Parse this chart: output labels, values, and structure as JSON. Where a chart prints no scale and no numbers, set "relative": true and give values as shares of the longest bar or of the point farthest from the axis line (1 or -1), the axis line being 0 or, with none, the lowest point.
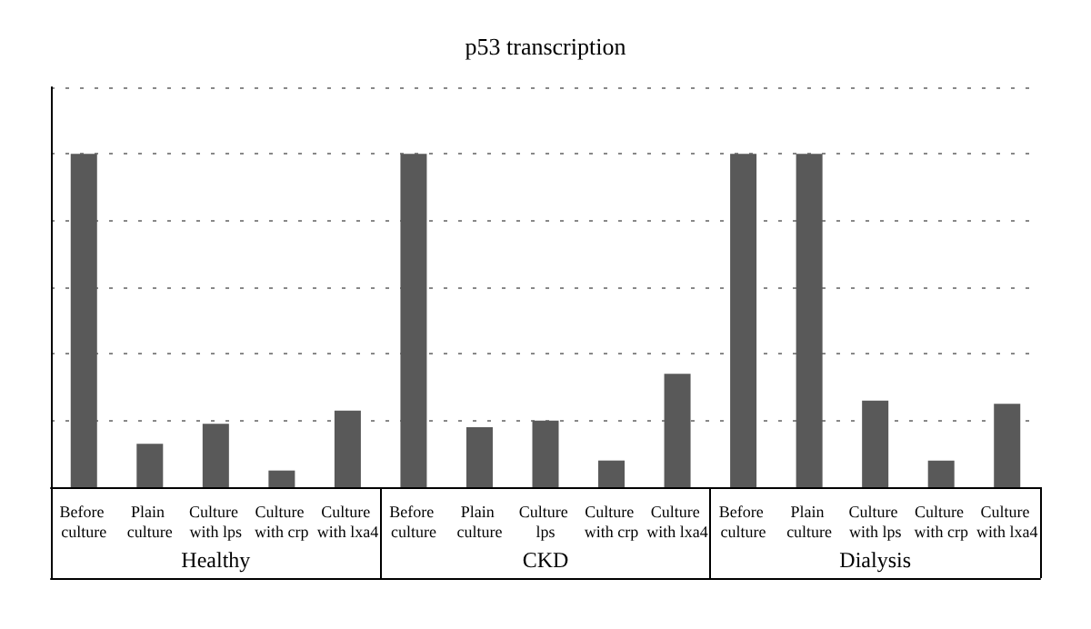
{
  "chart_data": {
    "type": "bar",
    "title": "p53 transcription",
    "relative": true,
    "grid": "y",
    "color": "#595959",
    "categories": [
      "Before culture",
      "Plain culture",
      "Culture with lps",
      "Culture with crp",
      "Culture with lxa4",
      "Before culture",
      "Plain culture",
      "Culture lps",
      "Culture with crp",
      "Culture with lxa4",
      "Before culture",
      "Plain culture",
      "Culture with lps",
      "Culture with crp",
      "Culture with lxa4"
    ],
    "values": [
      1,
      0.13,
      0.19,
      0.05,
      0.23,
      1,
      0.18,
      0.2,
      0.08,
      0.34,
      1,
      1,
      0.26,
      0.08,
      0.25
    ],
    "annotations": [
      "Healthy",
      "CKD",
      "Dialysis"
    ]
  }
}
